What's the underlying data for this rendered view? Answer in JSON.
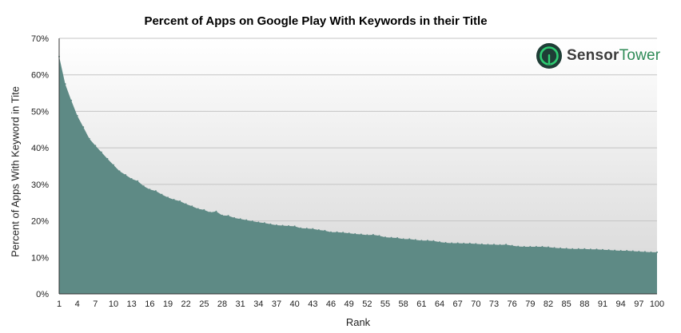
{
  "chart_data": {
    "type": "area",
    "title": "Percent of Apps on Google Play With Keywords in their Title",
    "xlabel": "Rank",
    "ylabel": "Percent of Apps With Keyword in Tite",
    "ylim": [
      0,
      70
    ],
    "yticks": [
      "0%",
      "10%",
      "20%",
      "30%",
      "40%",
      "50%",
      "60%",
      "70%"
    ],
    "xticks": [
      "1",
      "4",
      "7",
      "10",
      "13",
      "16",
      "19",
      "22",
      "25",
      "28",
      "31",
      "34",
      "37",
      "40",
      "43",
      "46",
      "49",
      "52",
      "55",
      "58",
      "61",
      "64",
      "67",
      "70",
      "73",
      "76",
      "79",
      "82",
      "85",
      "88",
      "91",
      "94",
      "97",
      "100"
    ],
    "grid": true,
    "fill_color": "#5e8a85",
    "series": [
      {
        "name": "Percent of Apps With Keyword in Title",
        "x": [
          1,
          2,
          3,
          4,
          5,
          6,
          7,
          8,
          9,
          10,
          11,
          12,
          13,
          14,
          15,
          16,
          17,
          18,
          19,
          20,
          21,
          22,
          23,
          24,
          25,
          26,
          27,
          28,
          29,
          30,
          31,
          32,
          33,
          34,
          35,
          36,
          37,
          38,
          39,
          40,
          41,
          42,
          43,
          44,
          45,
          46,
          47,
          48,
          49,
          50,
          51,
          52,
          53,
          54,
          55,
          56,
          57,
          58,
          59,
          60,
          61,
          62,
          63,
          64,
          65,
          66,
          67,
          68,
          69,
          70,
          71,
          72,
          73,
          74,
          75,
          76,
          77,
          78,
          79,
          80,
          81,
          82,
          83,
          84,
          85,
          86,
          87,
          88,
          89,
          90,
          91,
          92,
          93,
          94,
          95,
          96,
          97,
          98,
          99,
          100
        ],
        "values": [
          65.0,
          57.5,
          53.0,
          48.8,
          45.7,
          42.5,
          40.6,
          38.8,
          37.0,
          35.3,
          33.6,
          32.6,
          31.5,
          30.9,
          29.5,
          28.6,
          28.2,
          27.2,
          26.4,
          25.8,
          25.4,
          24.6,
          24.0,
          23.3,
          23.0,
          22.3,
          22.6,
          21.5,
          21.4,
          20.8,
          20.5,
          20.2,
          19.9,
          19.6,
          19.4,
          19.1,
          18.8,
          18.7,
          18.6,
          18.5,
          18.0,
          17.9,
          17.8,
          17.5,
          17.3,
          16.9,
          16.9,
          16.8,
          16.6,
          16.4,
          16.3,
          16.1,
          16.2,
          15.9,
          15.5,
          15.4,
          15.3,
          15.0,
          15.0,
          14.8,
          14.6,
          14.6,
          14.5,
          14.2,
          14.0,
          13.9,
          13.9,
          13.8,
          13.8,
          13.7,
          13.6,
          13.5,
          13.5,
          13.4,
          13.5,
          13.2,
          13.0,
          12.9,
          12.9,
          12.9,
          12.9,
          12.8,
          12.6,
          12.5,
          12.4,
          12.3,
          12.3,
          12.3,
          12.2,
          12.2,
          12.1,
          12.0,
          11.9,
          11.8,
          11.8,
          11.7,
          11.6,
          11.5,
          11.4,
          11.4
        ]
      }
    ]
  },
  "logo": {
    "part1": "Sensor",
    "part2": "Tower",
    "icon": "sensortower-logo-icon"
  }
}
